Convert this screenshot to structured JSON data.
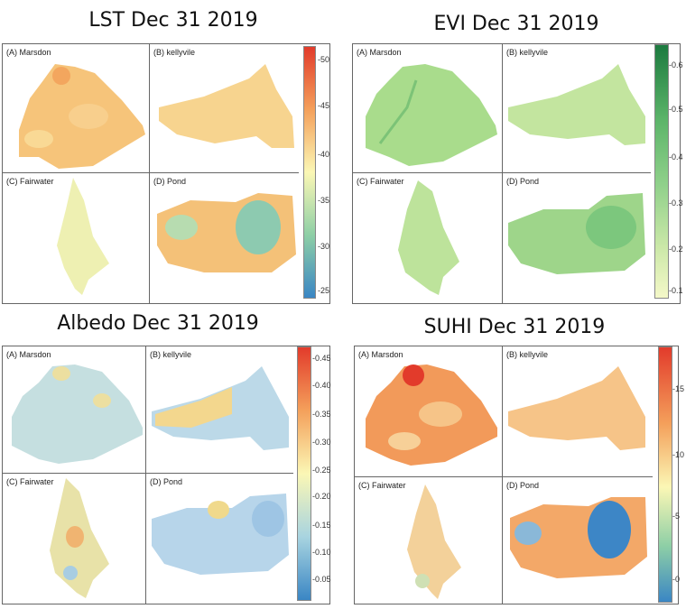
{
  "panels": [
    {
      "id": "lst",
      "title": "LST Dec 31 2019",
      "labels": [
        "(A) Marsdon",
        "(B) kellyvile",
        "(C) Fairwater",
        "(D) Pond"
      ],
      "colorbar": [
        "-50",
        "-45",
        "-40",
        "-35",
        "-30",
        "-25"
      ],
      "colors": {
        "bar_top": "#e23b2b",
        "bar_mid": "#fbf7b5",
        "bar_bottom": "#3a86c4",
        "marsdon": "#f6c47a",
        "kelly": "#f7d48f",
        "fair": "#eef0b2",
        "pond": "#f4c178",
        "pond_cool": "#8dcab0"
      }
    },
    {
      "id": "evi",
      "title": "EVI Dec 31 2019",
      "labels": [
        "(A) Marsdon",
        "(B) kellyvile",
        "(C) Fairwater",
        "(D) Pond"
      ],
      "colorbar": [
        "-0.6",
        "-0.5",
        "-0.4",
        "-0.3",
        "-0.2",
        "-0.1"
      ],
      "colors": {
        "bar_top": "#1c7a3f",
        "bar_mid": "#8fd08a",
        "bar_bottom": "#f4f8c8",
        "marsdon": "#a9dc8c",
        "kelly": "#c3e59f",
        "fair": "#bde39b",
        "pond": "#9ed58a",
        "pond_cool": "#7cc77d"
      }
    },
    {
      "id": "albedo",
      "title": "Albedo Dec 31 2019",
      "labels": [
        "(A) Marsdon",
        "(B) kellyvile",
        "(C) Fairwater",
        "(D) Pond"
      ],
      "colorbar": [
        "-0.45",
        "-0.40",
        "-0.35",
        "-0.30",
        "-0.25",
        "-0.20",
        "-0.15",
        "-0.10",
        "-0.05"
      ],
      "colors": {
        "bar_top": "#e23b2b",
        "bar_mid": "#fbf7b5",
        "bar_bottom": "#3a86c4",
        "marsdon": "#c5dfe0",
        "kelly": "#bcd9e8",
        "fair": "#e8e2a8",
        "pond": "#b7d5ea",
        "pond_cool": "#f0d98c"
      }
    },
    {
      "id": "suhi",
      "title": "SUHI Dec 31 2019",
      "labels": [
        "(A) Marsdon",
        "(B) kellyvile",
        "(C) Fairwater",
        "(D) Pond"
      ],
      "colorbar": [
        "-15",
        "-10",
        "-5",
        "-0"
      ],
      "colors": {
        "bar_top": "#e23b2b",
        "bar_mid": "#fbf7b5",
        "bar_bottom": "#3a86c4",
        "marsdon": "#f29a5a",
        "kelly": "#f6c488",
        "fair": "#f3d19a",
        "pond": "#f3a868",
        "pond_cool": "#3d86c6"
      }
    }
  ]
}
